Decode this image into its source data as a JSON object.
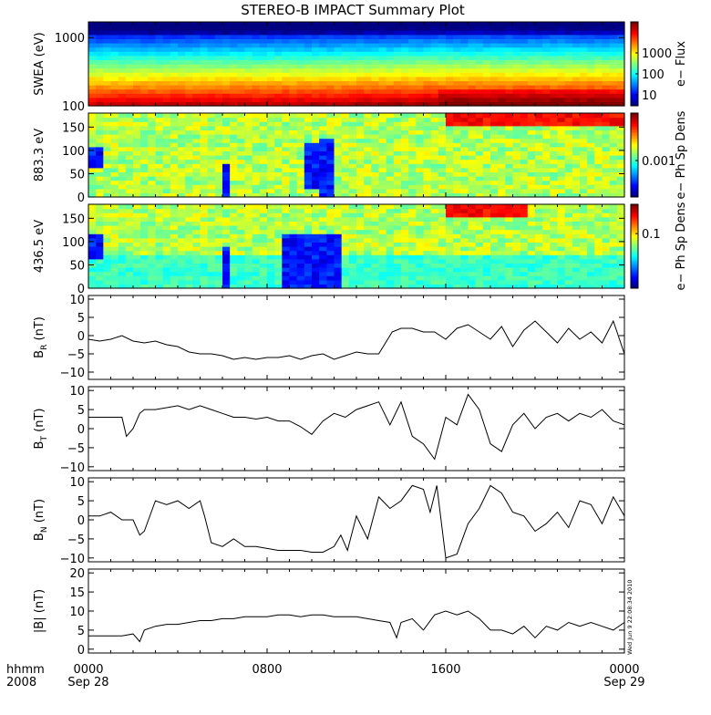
{
  "title": "STEREO-B IMPACT Summary Plot",
  "timestamp": "Wed Jun  9 22:08:34 2010",
  "time_axis": {
    "corner_top": "hhmm",
    "corner_bottom": "2008",
    "ticks": [
      {
        "t": 0,
        "top": "0000",
        "bottom": "Sep 28"
      },
      {
        "t": 8,
        "top": "0800",
        "bottom": ""
      },
      {
        "t": 16,
        "top": "1600",
        "bottom": ""
      },
      {
        "t": 24,
        "top": "0000",
        "bottom": "Sep 29"
      }
    ]
  },
  "colors": {
    "line": "#000000",
    "background": "#ffffff"
  },
  "chart_data": [
    {
      "id": "swea",
      "type": "heatmap",
      "ylabel": "SWEA (eV)",
      "yscale": "log",
      "ylim": [
        100,
        1700
      ],
      "yticks": [
        {
          "v": 100,
          "label": "100"
        },
        {
          "v": 1000,
          "label": "1000"
        }
      ],
      "colorbar": {
        "label": "e− Flux",
        "scale": "log",
        "range": [
          3,
          30000
        ],
        "ticks": [
          {
            "v": 10,
            "label": "10"
          },
          {
            "v": 100,
            "label": "100"
          },
          {
            "v": 1000,
            "label": "1000"
          }
        ]
      },
      "flux_boost_segments": [
        [
          0,
          0,
          0.4
        ],
        [
          10.5,
          0.35,
          0.5
        ],
        [
          15.5,
          0.8,
          0.9
        ],
        [
          24,
          0.8,
          0.9
        ]
      ]
    },
    {
      "id": "pad883",
      "type": "heatmap",
      "ylabel": "883.3 eV",
      "ylim": [
        0,
        180
      ],
      "yticks": [
        {
          "v": 0,
          "label": "0"
        },
        {
          "v": 50,
          "label": "50"
        },
        {
          "v": 100,
          "label": "100"
        },
        {
          "v": 150,
          "label": "150"
        }
      ],
      "colorbar": {
        "label": "e− Ph Sp Dens",
        "scale": "log",
        "range": [
          0.0001,
          0.02
        ],
        "ticks": [
          {
            "v": 0.001,
            "label": "0.001"
          }
        ]
      },
      "depletions": [
        {
          "t": [
            10.4,
            10.9
          ],
          "pitch": [
            0,
            130
          ]
        },
        {
          "t": [
            9.6,
            10.4
          ],
          "pitch": [
            20,
            120
          ]
        },
        {
          "t": [
            6.1,
            6.4
          ],
          "pitch": [
            0,
            70
          ]
        },
        {
          "t": [
            0.1,
            0.6
          ],
          "pitch": [
            60,
            110
          ]
        }
      ],
      "enhancements": [
        {
          "t": [
            16.0,
            24.0
          ],
          "pitch": [
            150,
            180
          ]
        }
      ]
    },
    {
      "id": "pad436",
      "type": "heatmap",
      "ylabel": "436.5 eV",
      "ylim": [
        0,
        180
      ],
      "yticks": [
        {
          "v": 0,
          "label": "0"
        },
        {
          "v": 50,
          "label": "50"
        },
        {
          "v": 100,
          "label": "100"
        },
        {
          "v": 150,
          "label": "150"
        }
      ],
      "colorbar": {
        "label": "e− Ph Sp Dens",
        "scale": "log",
        "range": [
          0.005,
          0.5
        ],
        "ticks": [
          {
            "v": 0.1,
            "label": "0.1"
          }
        ]
      },
      "depletions": [
        {
          "t": [
            8.8,
            11.2
          ],
          "pitch": [
            0,
            115
          ]
        },
        {
          "t": [
            6.0,
            6.4
          ],
          "pitch": [
            0,
            90
          ]
        },
        {
          "t": [
            0.0,
            0.7
          ],
          "pitch": [
            60,
            120
          ]
        }
      ],
      "enhancements": [
        {
          "t": [
            16.0,
            19.5
          ],
          "pitch": [
            150,
            180
          ]
        }
      ]
    },
    {
      "id": "br",
      "type": "line",
      "ylabel": "B",
      "ylabel_sub": "R",
      "ylabel_unit": "(nT)",
      "ylim": [
        -12,
        11
      ],
      "yticks": [
        {
          "v": -10,
          "label": "−10"
        },
        {
          "v": -5,
          "label": "−5"
        },
        {
          "v": 0,
          "label": "0"
        },
        {
          "v": 5,
          "label": "5"
        },
        {
          "v": 10,
          "label": "10"
        }
      ],
      "x": [
        0,
        0.5,
        1.0,
        1.5,
        2.0,
        2.5,
        3.0,
        3.5,
        4.0,
        4.5,
        5.0,
        5.5,
        6.0,
        6.5,
        7.0,
        7.5,
        8.0,
        8.5,
        9.0,
        9.5,
        10.0,
        10.5,
        11.0,
        11.5,
        12.0,
        12.5,
        13.0,
        13.3,
        13.6,
        14.0,
        14.5,
        15.0,
        15.5,
        16.0,
        16.5,
        17.0,
        17.5,
        18.0,
        18.5,
        19.0,
        19.5,
        20.0,
        20.5,
        21.0,
        21.5,
        22.0,
        22.5,
        23.0,
        23.5,
        24.0
      ],
      "values": [
        -1,
        -1.5,
        -1,
        0,
        -1.5,
        -2,
        -1.5,
        -2.5,
        -3,
        -4.5,
        -5,
        -5,
        -5.5,
        -6.5,
        -6,
        -6.5,
        -6,
        -6,
        -5.5,
        -6.5,
        -5.5,
        -5,
        -6.5,
        -5.5,
        -4.5,
        -5,
        -5,
        -2,
        1,
        2,
        2,
        1,
        1,
        -1,
        2,
        3,
        1,
        -1,
        2.5,
        -3,
        1.5,
        4,
        1,
        -2,
        2,
        -1,
        1,
        -2,
        4,
        -5
      ]
    },
    {
      "id": "bt",
      "type": "line",
      "ylabel": "B",
      "ylabel_sub": "T",
      "ylabel_unit": "(nT)",
      "ylim": [
        -11,
        11
      ],
      "yticks": [
        {
          "v": -10,
          "label": "−10"
        },
        {
          "v": -5,
          "label": "−5"
        },
        {
          "v": 0,
          "label": "0"
        },
        {
          "v": 5,
          "label": "5"
        },
        {
          "v": 10,
          "label": "10"
        }
      ],
      "x": [
        0,
        0.5,
        1.0,
        1.5,
        1.7,
        2.0,
        2.3,
        2.5,
        3.0,
        3.5,
        4.0,
        4.5,
        5.0,
        5.5,
        6.0,
        6.5,
        7.0,
        7.5,
        8.0,
        8.5,
        9.0,
        9.5,
        10.0,
        10.5,
        11.0,
        11.5,
        12.0,
        12.5,
        13.0,
        13.5,
        14.0,
        14.5,
        15.0,
        15.5,
        16.0,
        16.5,
        17.0,
        17.5,
        18.0,
        18.5,
        19.0,
        19.5,
        20.0,
        20.5,
        21.0,
        21.5,
        22.0,
        22.5,
        23.0,
        23.5,
        24.0
      ],
      "values": [
        3,
        3,
        3,
        3,
        -2,
        0,
        4,
        5,
        5,
        5.5,
        6,
        5,
        6,
        5,
        4,
        3,
        3,
        2.5,
        3,
        2,
        2,
        0.5,
        -1.5,
        2,
        4,
        3,
        5,
        6,
        7,
        1,
        7,
        -2,
        -4,
        -8,
        3,
        1,
        9,
        5,
        -4,
        -6,
        1,
        4,
        0,
        3,
        4,
        2,
        4,
        3,
        5,
        2,
        1
      ]
    },
    {
      "id": "bn",
      "type": "line",
      "ylabel": "B",
      "ylabel_sub": "N",
      "ylabel_unit": "(nT)",
      "ylim": [
        -11,
        11
      ],
      "yticks": [
        {
          "v": -10,
          "label": "−10"
        },
        {
          "v": -5,
          "label": "−5"
        },
        {
          "v": 0,
          "label": "0"
        },
        {
          "v": 5,
          "label": "5"
        },
        {
          "v": 10,
          "label": "10"
        }
      ],
      "x": [
        0,
        0.5,
        1.0,
        1.5,
        2.0,
        2.3,
        2.5,
        3.0,
        3.5,
        4.0,
        4.5,
        5.0,
        5.2,
        5.5,
        6.0,
        6.5,
        7.0,
        7.5,
        8.0,
        8.5,
        9.0,
        9.5,
        10.0,
        10.5,
        11.0,
        11.3,
        11.6,
        12.0,
        12.5,
        13.0,
        13.5,
        14.0,
        14.5,
        15.0,
        15.3,
        15.6,
        16.0,
        16.5,
        17.0,
        17.5,
        18.0,
        18.5,
        19.0,
        19.5,
        20.0,
        20.5,
        21.0,
        21.5,
        22.0,
        22.5,
        23.0,
        23.5,
        24.0
      ],
      "values": [
        1,
        1,
        2,
        0,
        0,
        -4,
        -3,
        5,
        4,
        5,
        3,
        5,
        1,
        -6,
        -7,
        -5,
        -7,
        -7,
        -7.5,
        -8,
        -8,
        -8,
        -8.5,
        -8.5,
        -7,
        -4,
        -8,
        1,
        -5,
        6,
        3,
        5,
        9,
        8,
        2,
        9,
        -10,
        -9,
        -1,
        3,
        9,
        7,
        2,
        1,
        -3,
        -1,
        2,
        -2,
        5,
        4,
        -1,
        6,
        1
      ]
    },
    {
      "id": "bmag",
      "type": "line",
      "ylabel": "|B|",
      "ylabel_sub": "",
      "ylabel_unit": "(nT)",
      "ylim": [
        -1,
        21
      ],
      "yticks": [
        {
          "v": 0,
          "label": "0"
        },
        {
          "v": 5,
          "label": "5"
        },
        {
          "v": 10,
          "label": "10"
        },
        {
          "v": 15,
          "label": "15"
        },
        {
          "v": 20,
          "label": "20"
        }
      ],
      "x": [
        0,
        0.5,
        1.0,
        1.5,
        2.0,
        2.3,
        2.5,
        3.0,
        3.5,
        4.0,
        4.5,
        5.0,
        5.5,
        6.0,
        6.5,
        7.0,
        7.5,
        8.0,
        8.5,
        9.0,
        9.5,
        10.0,
        10.5,
        11.0,
        11.5,
        12.0,
        12.5,
        13.0,
        13.5,
        13.8,
        14.0,
        14.5,
        15.0,
        15.5,
        16.0,
        16.5,
        17.0,
        17.5,
        18.0,
        18.5,
        19.0,
        19.5,
        20.0,
        20.5,
        21.0,
        21.5,
        22.0,
        22.5,
        23.0,
        23.5,
        24.0
      ],
      "values": [
        3.5,
        3.5,
        3.5,
        3.5,
        4,
        2,
        5,
        6,
        6.5,
        6.5,
        7,
        7.5,
        7.5,
        8,
        8,
        8.5,
        8.5,
        8.5,
        9,
        9,
        8.5,
        9,
        9,
        8.5,
        8.5,
        8.5,
        8,
        7.5,
        7,
        3,
        7,
        8,
        5,
        9,
        10,
        9,
        10,
        8,
        5,
        5,
        4,
        6,
        3,
        6,
        5,
        7,
        6,
        7,
        6,
        5,
        7
      ]
    }
  ]
}
